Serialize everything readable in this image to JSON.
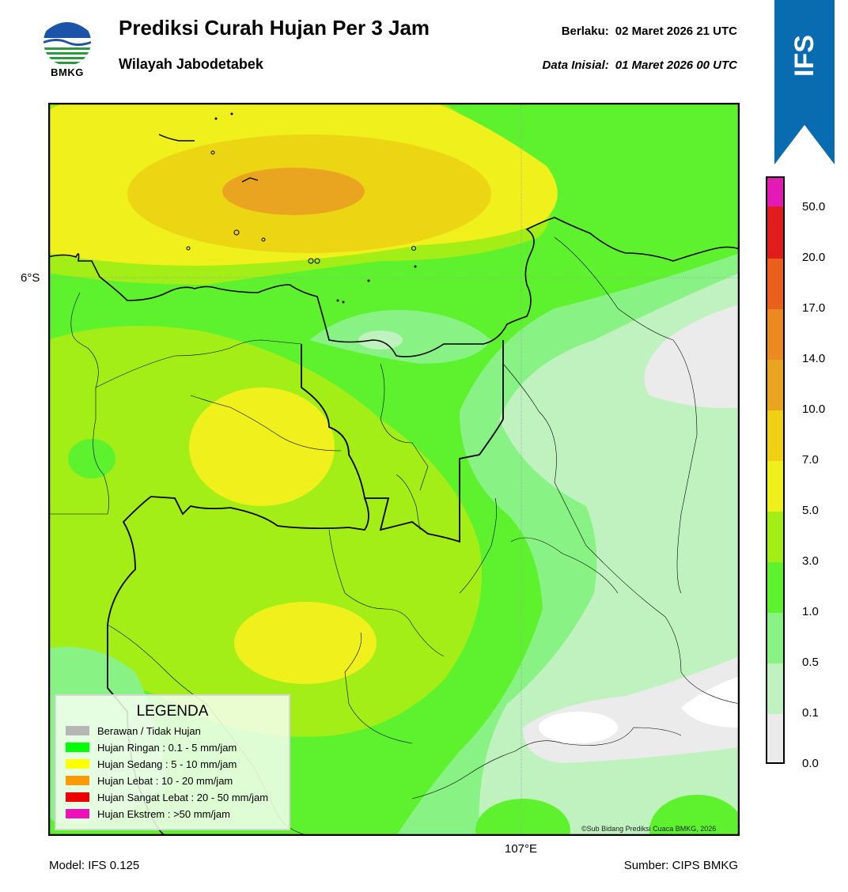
{
  "header": {
    "logo_text": "BMKG",
    "title": "Prediksi Curah Hujan Per 3 Jam",
    "subtitle": "Wilayah Jabodetabek",
    "valid_label": "Berlaku:",
    "valid_value": "02 Maret 2026 21 UTC",
    "init_label": "Data Inisial:",
    "init_value": "01 Maret 2026 00 UTC",
    "badge": "IFS"
  },
  "colors": {
    "brand_blue": "#0a6cb0",
    "clear": "#ebebeb",
    "light_green": "#bff2bf",
    "medium_green": "#88f285",
    "green": "#5ef22e",
    "yellow_green": "#a4ee18",
    "yellow": "#f0f01c",
    "gold": "#ecd614",
    "orange": "#eaa520",
    "red": "#e01c1c",
    "magenta": "#e41ab4"
  },
  "map": {
    "lat_label": "6°S",
    "lon_label": "107°E",
    "credit": "©Sub Bidang Prediksi Cuaca BMKG, 2026"
  },
  "legend": {
    "title": "LEGENDA",
    "items": [
      {
        "label": "Berawan / Tidak Hujan",
        "color": "#b6b6b6"
      },
      {
        "label": "Hujan Ringan : 0.1 - 5 mm/jam",
        "color": "#00ff00"
      },
      {
        "label": "Hujan Sedang : 5 - 10 mm/jam",
        "color": "#ffff00"
      },
      {
        "label": "Hujan Lebat : 10 - 20 mm/jam",
        "color": "#ff9900"
      },
      {
        "label": "Hujan Sangat Lebat : 20 - 50 mm/jam",
        "color": "#ee0000"
      },
      {
        "label": "Hujan Ekstrem : >50 mm/jam",
        "color": "#ee11bb"
      }
    ]
  },
  "colorbar": {
    "labels": [
      "50.0",
      "20.0",
      "17.0",
      "14.0",
      "10.0",
      "7.0",
      "5.0",
      "3.0",
      "1.0",
      "0.5",
      "0.1",
      "0.0"
    ],
    "colors_bottom_to_top": [
      "#ebebeb",
      "#bff2bf",
      "#88f285",
      "#5ef22e",
      "#3cf000",
      "#a4ee18",
      "#f0f01c",
      "#f0d014",
      "#eaa520",
      "#ea8a20",
      "#e8601c",
      "#e01c1c",
      "#e41ab4"
    ]
  },
  "footer": {
    "model": "Model: IFS 0.125",
    "source": "Sumber: CIPS BMKG"
  }
}
